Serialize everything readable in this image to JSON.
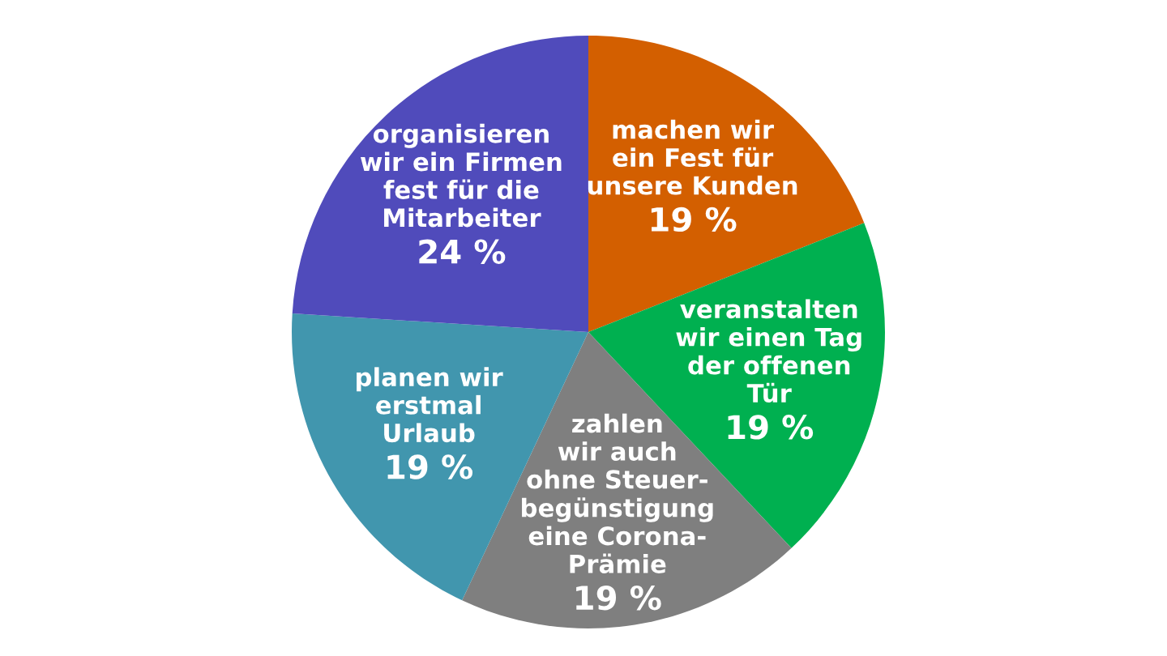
{
  "chart_data": {
    "type": "pie",
    "categories": [
      "machen wir\nein Fest für\nunsere Kunden",
      "veranstalten\nwir einen Tag\nder offenen\nTür",
      "zahlen\nwir auch\nohne Steuer-\nbegünstigung\neine Corona-\nPrämie",
      "planen wir\nerstmal\nUrlaub",
      "organisieren\nwir ein Firmen\nfest für die\nMitarbeiter"
    ],
    "values": [
      19,
      19,
      19,
      19,
      24
    ],
    "colors": [
      "#d35f00",
      "#00b050",
      "#7f7f7f",
      "#4196ae",
      "#504bbb"
    ],
    "value_labels": [
      "19 %",
      "19 %",
      "19 %",
      "19 %",
      "24 %"
    ]
  }
}
